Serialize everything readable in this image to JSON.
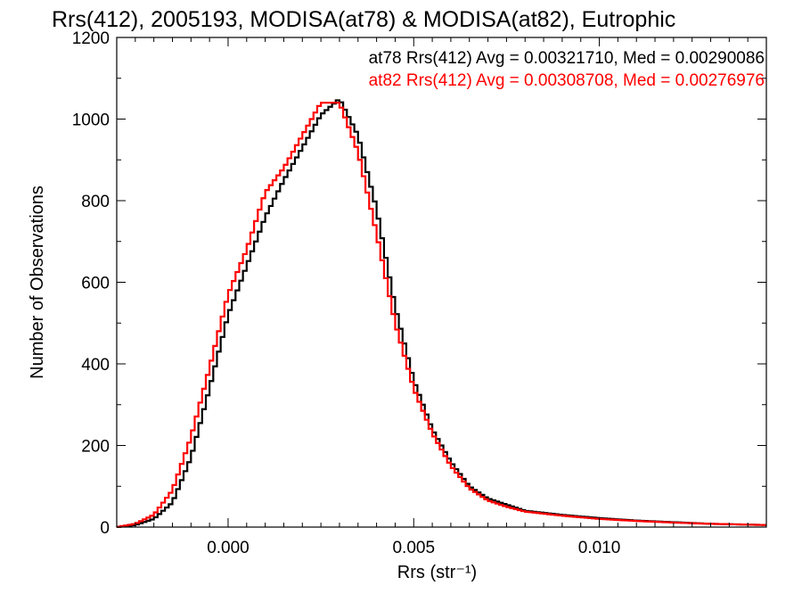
{
  "chart_data": {
    "type": "histogram",
    "title": "Rrs(412), 2005193, MODISA(at78) & MODISA(at82), Eutrophic",
    "xlabel": "Rrs (str⁻¹)",
    "ylabel": "Number of Observations",
    "xlim": [
      -0.003,
      0.0145
    ],
    "ylim": [
      0,
      1200
    ],
    "x_ticks": [
      0.0,
      0.005,
      0.01
    ],
    "x_tick_labels": [
      "0.000",
      "0.005",
      "0.010"
    ],
    "y_ticks": [
      0,
      200,
      400,
      600,
      800,
      1000,
      1200
    ],
    "y_tick_labels": [
      "0",
      "200",
      "400",
      "600",
      "800",
      "1000",
      "1200"
    ],
    "grid": false,
    "legend_position": "top-right",
    "series": [
      {
        "name": "at78",
        "legend": "at78 Rrs(412) Avg = 0.00321710, Med = 0.00290086",
        "color": "#000000",
        "x": [
          -0.003,
          -0.0025,
          -0.002,
          -0.0015,
          -0.001,
          -0.0005,
          0.0,
          0.0005,
          0.001,
          0.0015,
          0.002,
          0.0025,
          0.003,
          0.0035,
          0.004,
          0.0045,
          0.005,
          0.0055,
          0.006,
          0.0065,
          0.007,
          0.0075,
          0.008,
          0.009,
          0.01,
          0.011,
          0.012,
          0.013,
          0.0145
        ],
        "y": [
          0,
          5,
          20,
          60,
          170,
          340,
          520,
          640,
          760,
          850,
          930,
          1010,
          1050,
          960,
          780,
          540,
          360,
          240,
          160,
          100,
          70,
          55,
          40,
          30,
          22,
          16,
          12,
          8,
          5
        ]
      },
      {
        "name": "at82",
        "legend": "at82 Rrs(412) Avg = 0.00308708, Med = 0.00276976",
        "color": "#ff0000",
        "x": [
          -0.003,
          -0.0025,
          -0.002,
          -0.0015,
          -0.001,
          -0.0005,
          0.0,
          0.0005,
          0.001,
          0.0015,
          0.002,
          0.0025,
          0.003,
          0.0035,
          0.004,
          0.0045,
          0.005,
          0.0055,
          0.006,
          0.0065,
          0.007,
          0.0075,
          0.008,
          0.009,
          0.01,
          0.011,
          0.012,
          0.013,
          0.0145
        ],
        "y": [
          0,
          8,
          30,
          90,
          220,
          390,
          570,
          680,
          820,
          880,
          960,
          1040,
          1040,
          920,
          720,
          500,
          340,
          230,
          150,
          95,
          65,
          50,
          38,
          28,
          20,
          15,
          11,
          8,
          5
        ]
      }
    ]
  }
}
